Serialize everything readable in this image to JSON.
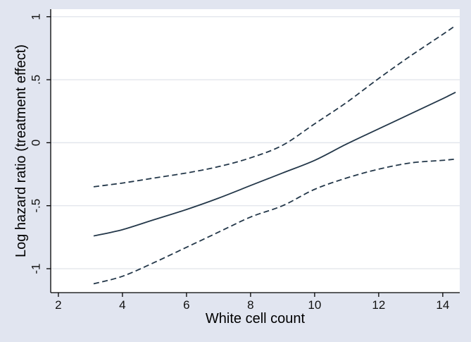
{
  "figure": {
    "background_color": "#e1e5f0",
    "plot_background_color": "#ffffff",
    "grid_color": "#e3e6ec",
    "axis_color": "#000000",
    "line_color": "#233749",
    "tick_label_color": "#111111"
  },
  "chart_data": {
    "type": "line",
    "title": "",
    "xlabel": "White cell count",
    "ylabel": "Log hazard ratio (treatment effect)",
    "xlim": [
      1.76,
      14.53
    ],
    "ylim": [
      -1.19,
      1.06
    ],
    "grid": true,
    "legend": "none",
    "x_ticks": [
      2,
      4,
      6,
      8,
      10,
      12,
      14
    ],
    "x_tick_labels": [
      "2",
      "4",
      "6",
      "8",
      "10",
      "12",
      "14"
    ],
    "y_ticks": [
      1,
      0.5,
      0,
      -0.5,
      -1
    ],
    "y_tick_labels": [
      "1",
      ".5",
      "0",
      "-.5",
      "-1"
    ],
    "x": [
      3.1,
      4,
      5,
      6,
      7,
      8,
      9,
      10,
      11,
      12,
      13,
      14,
      14.4
    ],
    "series": [
      {
        "name": "estimate",
        "style": "solid",
        "values": [
          -0.74,
          -0.69,
          -0.61,
          -0.53,
          -0.44,
          -0.34,
          -0.24,
          -0.14,
          -0.01,
          0.11,
          0.23,
          0.35,
          0.4
        ]
      },
      {
        "name": "upper-confidence-limit",
        "style": "dashed",
        "values": [
          -0.35,
          -0.32,
          -0.28,
          -0.24,
          -0.19,
          -0.12,
          -0.02,
          0.15,
          0.32,
          0.51,
          0.69,
          0.86,
          0.93
        ]
      },
      {
        "name": "lower-confidence-limit",
        "style": "dashed",
        "values": [
          -1.12,
          -1.06,
          -0.95,
          -0.83,
          -0.71,
          -0.59,
          -0.5,
          -0.37,
          -0.28,
          -0.21,
          -0.16,
          -0.14,
          -0.13
        ]
      }
    ]
  }
}
